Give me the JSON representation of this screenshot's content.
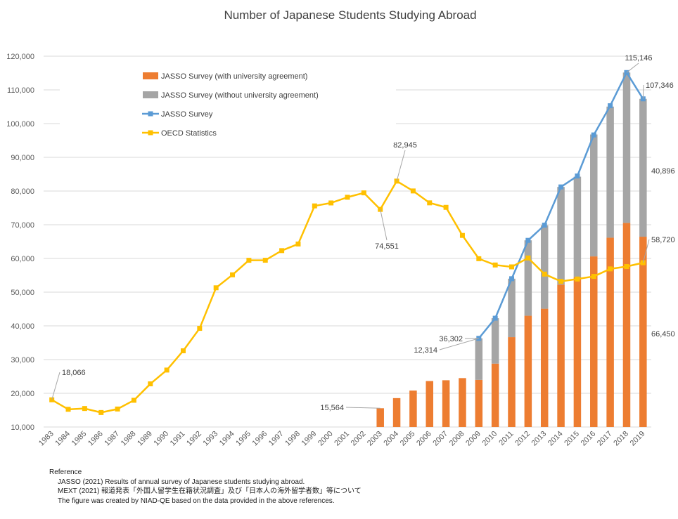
{
  "chart_data": {
    "type": "bar",
    "title": "Number of Japanese Students Studying Abroad",
    "ylim": [
      10000,
      120000
    ],
    "yticks": [
      "10,000",
      "20,000",
      "30,000",
      "40,000",
      "50,000",
      "60,000",
      "70,000",
      "80,000",
      "90,000",
      "100,000",
      "110,000",
      "120,000"
    ],
    "categories": [
      "1983",
      "1984",
      "1985",
      "1986",
      "1987",
      "1988",
      "1989",
      "1990",
      "1991",
      "1992",
      "1993",
      "1994",
      "1995",
      "1996",
      "1997",
      "1998",
      "1999",
      "2000",
      "2001",
      "2002",
      "2003",
      "2004",
      "2005",
      "2006",
      "2007",
      "2008",
      "2009",
      "2010",
      "2011",
      "2012",
      "2013",
      "2014",
      "2015",
      "2016",
      "2017",
      "2018",
      "2019"
    ],
    "gridlines": true,
    "legend_position": "top-left",
    "series": [
      {
        "name": "JASSO Survey (with university agreement)",
        "kind": "stacked-bar",
        "color": "#ED7D31",
        "values": [
          null,
          null,
          null,
          null,
          null,
          null,
          null,
          null,
          null,
          null,
          null,
          null,
          null,
          null,
          null,
          null,
          null,
          null,
          null,
          null,
          15564,
          18570,
          20804,
          23633,
          23874,
          24508,
          23988,
          28804,
          36656,
          43009,
          45082,
          52248,
          54455,
          60606,
          66156,
          70540,
          66450
        ]
      },
      {
        "name": "JASSO Survey (without university agreement)",
        "kind": "stacked-bar",
        "color": "#A5A5A5",
        "values": [
          null,
          null,
          null,
          null,
          null,
          null,
          null,
          null,
          null,
          null,
          null,
          null,
          null,
          null,
          null,
          null,
          null,
          null,
          null,
          null,
          null,
          null,
          null,
          null,
          null,
          null,
          12314,
          13470,
          17336,
          22364,
          24742,
          28971,
          29801,
          36165,
          38887,
          44606,
          40896
        ]
      },
      {
        "name": "JASSO Survey",
        "kind": "line",
        "color": "#5B9BD5",
        "values": [
          null,
          null,
          null,
          null,
          null,
          null,
          null,
          null,
          null,
          null,
          null,
          null,
          null,
          null,
          null,
          null,
          null,
          null,
          null,
          null,
          null,
          null,
          null,
          null,
          null,
          null,
          36302,
          42274,
          53991,
          65373,
          69869,
          81219,
          84456,
          96641,
          105301,
          115146,
          107346
        ]
      },
      {
        "name": "OECD Statistics",
        "kind": "line",
        "color": "#FFC000",
        "values": [
          18066,
          15246,
          15485,
          14297,
          15335,
          17926,
          22798,
          26893,
          32609,
          39258,
          51295,
          55145,
          59460,
          59468,
          62324,
          64284,
          75586,
          76464,
          78151,
          79455,
          74551,
          82945,
          80023,
          76492,
          75156,
          66833,
          59923,
          58060,
          57501,
          60138,
          55350,
          53197,
          53900,
          54676,
          56900,
          57600,
          58720
        ]
      }
    ],
    "annotations": [
      {
        "label": "18,066",
        "series": "OECD Statistics",
        "x": "1983"
      },
      {
        "label": "82,945",
        "series": "OECD Statistics",
        "x": "2004"
      },
      {
        "label": "74,551",
        "series": "OECD Statistics",
        "x": "2003"
      },
      {
        "label": "15,564",
        "series": "JASSO Survey (with university agreement)",
        "x": "2003"
      },
      {
        "label": "12,314",
        "series": "JASSO Survey (without university agreement)",
        "x": "2009"
      },
      {
        "label": "36,302",
        "series": "JASSO Survey",
        "x": "2009"
      },
      {
        "label": "115,146",
        "series": "JASSO Survey",
        "x": "2018"
      },
      {
        "label": "107,346",
        "series": "JASSO Survey",
        "x": "2019"
      },
      {
        "label": "40,896",
        "series": "JASSO Survey (without university agreement)",
        "x": "2019"
      },
      {
        "label": "58,720",
        "series": "OECD Statistics",
        "x": "2019"
      },
      {
        "label": "66,450",
        "series": "JASSO Survey (with university agreement)",
        "x": "2019"
      }
    ]
  },
  "references": {
    "heading": "Reference",
    "lines": [
      "JASSO (2021) Results of annual survey of Japanese students studying abroad.",
      "MEXT (2021) 報道発表「外国人留学生在籍状況調査」及び「日本人の海外留学者数」等について",
      "The figure was created by NIAD-QE based on the data provided in the above references."
    ]
  }
}
